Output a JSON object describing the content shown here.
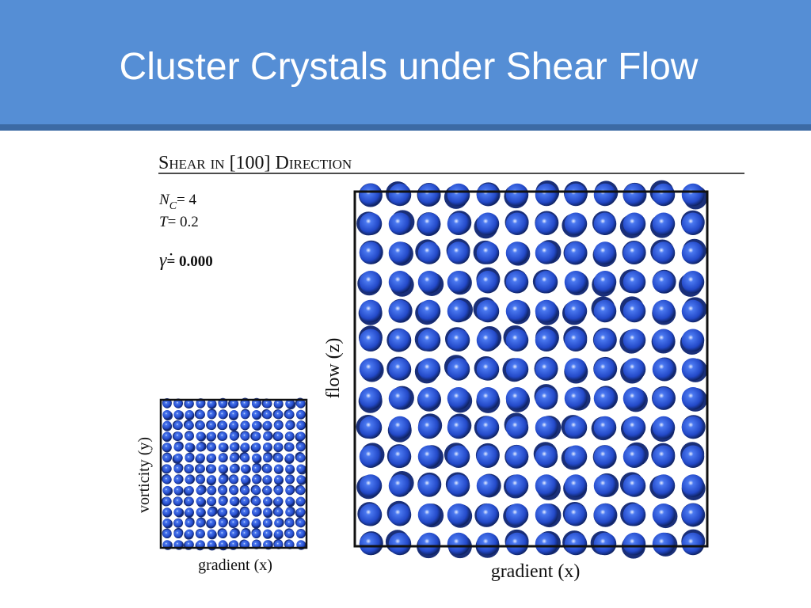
{
  "header": {
    "title": "Cluster Crystals under Shear Flow"
  },
  "figure": {
    "heading": "Shear in [100] Direction",
    "parameters": [
      {
        "symbol": "N",
        "subscript": "C",
        "rest": "= 4"
      },
      {
        "symbol": "T",
        "rest": "= 0.2"
      },
      {
        "symbol": "γ̇",
        "rest": "= 0.000"
      }
    ],
    "large_panel": {
      "vertical_label": "flow (z)",
      "horizontal_label": "gradient (x)"
    },
    "small_panel": {
      "vertical_label": "vorticity (y)",
      "horizontal_label": "gradient (x)"
    }
  }
}
